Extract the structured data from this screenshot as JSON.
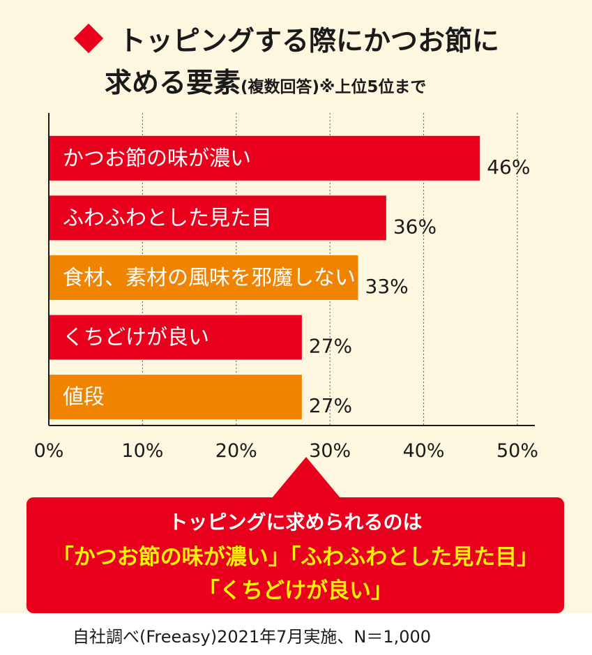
{
  "title": {
    "line1": "トッピングする際にかつお節に",
    "line2_main": "求める要素",
    "line2_small": "(複数回答)※上位5位まで"
  },
  "colors": {
    "red": "#e8001c",
    "orange": "#f08300",
    "yellow": "#fff200",
    "background": "#fdf7df"
  },
  "chart_data": {
    "type": "bar",
    "orientation": "horizontal",
    "categories": [
      "かつお節の味が濃い",
      "ふわふわとした見た目",
      "食材、素材の風味を邪魔しない",
      "くちどけが良い",
      "値段"
    ],
    "values": [
      46,
      36,
      33,
      27,
      27
    ],
    "value_labels": [
      "46%",
      "36%",
      "33%",
      "27%",
      "27%"
    ],
    "bar_colors": [
      "#e8001c",
      "#e8001c",
      "#f08300",
      "#e8001c",
      "#f08300"
    ],
    "xlim": [
      0,
      50
    ],
    "xticks": [
      0,
      10,
      20,
      30,
      40,
      50
    ],
    "xtick_labels": [
      "0%",
      "10%",
      "20%",
      "30%",
      "40%",
      "50%"
    ],
    "grid": "vertical"
  },
  "callout": {
    "line1": "トッピングに求められるのは",
    "line2": "「かつお節の味が濃い」「ふわふわとした見た目」",
    "line3": "「くちどけが良い」"
  },
  "source": "自社調べ(Freeasy)2021年7月実施、N＝1,000"
}
